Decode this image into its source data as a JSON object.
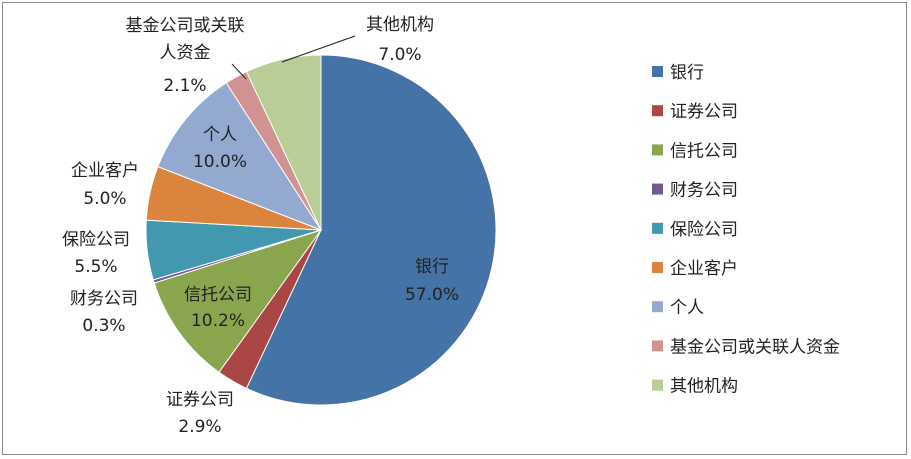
{
  "chart_data": {
    "type": "pie",
    "start_angle": "top",
    "direction": "clockwise",
    "legend_position": "right",
    "slices": [
      {
        "label": "银行",
        "value": 57.0,
        "value_label": "57.0%",
        "color": "#4572A7"
      },
      {
        "label": "证券公司",
        "value": 2.9,
        "value_label": "2.9%",
        "color": "#AA4643"
      },
      {
        "label": "信托公司",
        "value": 10.2,
        "value_label": "10.2%",
        "color": "#89A54E"
      },
      {
        "label": "财务公司",
        "value": 0.3,
        "value_label": "0.3%",
        "color": "#71588F"
      },
      {
        "label": "保险公司",
        "value": 5.5,
        "value_label": "5.5%",
        "color": "#4198AF"
      },
      {
        "label": "企业客户",
        "value": 5.0,
        "value_label": "5.0%",
        "color": "#DB843D"
      },
      {
        "label": "个人",
        "value": 10.0,
        "value_label": "10.0%",
        "color": "#93A9CF"
      },
      {
        "label": "基金公司或关联人资金",
        "value": 2.1,
        "value_label": "2.1%",
        "color": "#D19392"
      },
      {
        "label": "其他机构",
        "value": 7.0,
        "value_label": "7.0%",
        "color": "#B9CD96"
      }
    ]
  }
}
